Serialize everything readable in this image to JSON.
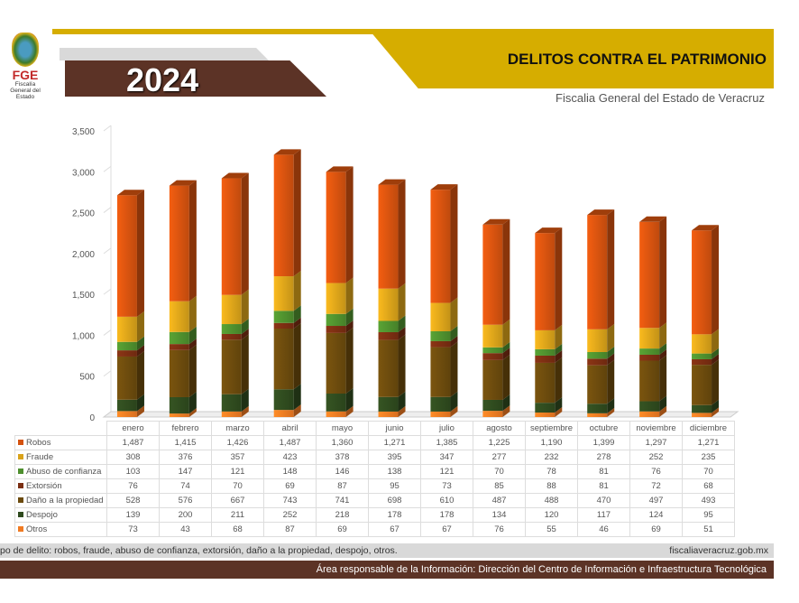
{
  "header": {
    "logo_text": "FGE",
    "logo_sub": "Fiscalía General del Estado",
    "year": "2024",
    "title": "DELITOS CONTRA EL PATRIMONIO",
    "subtitle": "Fiscalia General del Estado de Veracruz"
  },
  "footer": {
    "note": "po de delito: robos, fraude, abuso de confianza, extorsión, daño a la propiedad, despojo,  otros.",
    "website": "fiscaliaveracruz.gob.mx",
    "responsible": "Área responsable de la Información: Dirección del Centro de Información e Infraestructura Tecnológica"
  },
  "chart_data": {
    "type": "bar",
    "stacked": true,
    "categories": [
      "enero",
      "febrero",
      "marzo",
      "abril",
      "mayo",
      "junio",
      "julio",
      "agosto",
      "septiembre",
      "octubre",
      "noviembre",
      "diciembre"
    ],
    "yticks": [
      "0",
      "500",
      "1,000",
      "1,500",
      "2,000",
      "2,500",
      "3,000",
      "3,500"
    ],
    "ylim": [
      0,
      3500
    ],
    "series": [
      {
        "name": "Robos",
        "color": "#d4520f",
        "values": [
          1487,
          1415,
          1426,
          1487,
          1360,
          1271,
          1385,
          1225,
          1190,
          1399,
          1297,
          1271
        ],
        "labels": [
          "1,487",
          "1,415",
          "1,426",
          "1,487",
          "1,360",
          "1,271",
          "1,385",
          "1,225",
          "1,190",
          "1,399",
          "1,297",
          "1,271"
        ]
      },
      {
        "name": "Fraude",
        "color": "#d9a21a",
        "values": [
          308,
          376,
          357,
          423,
          378,
          395,
          347,
          277,
          232,
          278,
          252,
          235
        ]
      },
      {
        "name": "Abuso de confianza",
        "color": "#4e8f2e",
        "values": [
          103,
          147,
          121,
          148,
          146,
          138,
          121,
          70,
          78,
          81,
          76,
          70
        ]
      },
      {
        "name": "Extorsión",
        "color": "#7a2e12",
        "values": [
          76,
          74,
          70,
          69,
          87,
          95,
          73,
          85,
          88,
          81,
          72,
          68
        ]
      },
      {
        "name": "Daño a la propiedad",
        "color": "#6b4a0d",
        "values": [
          528,
          576,
          667,
          743,
          741,
          698,
          610,
          487,
          488,
          470,
          497,
          493
        ]
      },
      {
        "name": "Despojo",
        "color": "#2f4a1e",
        "values": [
          139,
          200,
          211,
          252,
          218,
          178,
          178,
          134,
          120,
          117,
          124,
          95
        ]
      },
      {
        "name": "Otros",
        "color": "#f07a22",
        "values": [
          73,
          43,
          68,
          87,
          69,
          67,
          67,
          76,
          55,
          46,
          69,
          51
        ]
      }
    ]
  }
}
